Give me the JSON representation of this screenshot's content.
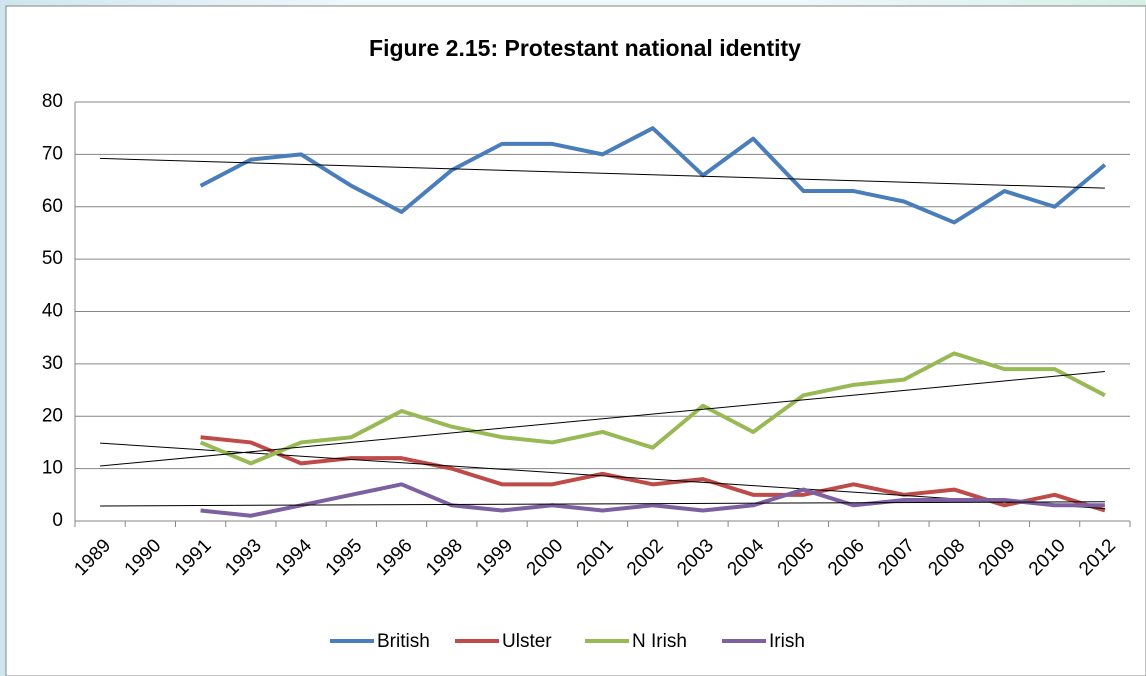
{
  "chart_data": {
    "type": "line",
    "title": "Figure 2.15: Protestant national identity",
    "categories": [
      "1989",
      "1990",
      "1991",
      "1993",
      "1994",
      "1995",
      "1996",
      "1998",
      "1999",
      "2000",
      "2001",
      "2002",
      "2003",
      "2004",
      "2005",
      "2006",
      "2007",
      "2008",
      "2009",
      "2010",
      "2012"
    ],
    "series": [
      {
        "name": "British",
        "color": "#4a7ebb",
        "values": [
          null,
          null,
          64,
          69,
          70,
          64,
          59,
          67,
          72,
          72,
          70,
          75,
          66,
          73,
          63,
          63,
          61,
          57,
          63,
          60,
          68
        ]
      },
      {
        "name": "Ulster",
        "color": "#be4b48",
        "values": [
          null,
          null,
          16,
          15,
          11,
          12,
          12,
          10,
          7,
          7,
          9,
          7,
          8,
          5,
          5,
          7,
          5,
          6,
          3,
          5,
          2
        ]
      },
      {
        "name": "N Irish",
        "color": "#98b954",
        "values": [
          null,
          null,
          15,
          11,
          15,
          16,
          21,
          18,
          16,
          15,
          17,
          14,
          22,
          17,
          24,
          26,
          27,
          32,
          29,
          29,
          24
        ]
      },
      {
        "name": "Irish",
        "color": "#7d60a0",
        "values": [
          null,
          null,
          2,
          1,
          3,
          5,
          7,
          3,
          2,
          3,
          2,
          3,
          2,
          3,
          6,
          3,
          4,
          4,
          4,
          3,
          3
        ]
      }
    ],
    "ylim": [
      0,
      80
    ],
    "yticks": [
      0,
      10,
      20,
      30,
      40,
      50,
      60,
      70,
      80
    ],
    "grid": true,
    "trendline": true,
    "legend": "bottom"
  }
}
